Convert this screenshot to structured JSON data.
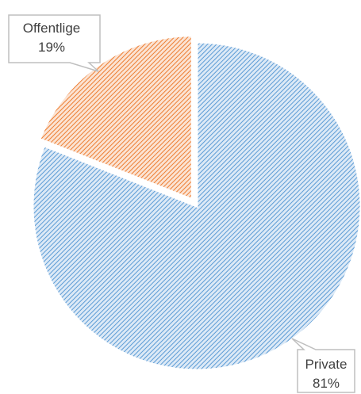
{
  "chart_data": {
    "type": "pie",
    "title": "",
    "slices": [
      {
        "label": "Private",
        "value": 81,
        "value_label": "81%",
        "color": "#5b9bd5",
        "hatch": "diagonal",
        "exploded": false
      },
      {
        "label": "Offentlige",
        "value": 19,
        "value_label": "19%",
        "color": "#ed7d31",
        "hatch": "diagonal",
        "exploded": true
      }
    ],
    "legend": "none",
    "data_labels": "callout boxes with category name and percentage"
  }
}
